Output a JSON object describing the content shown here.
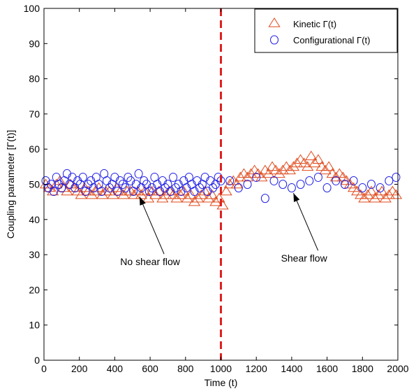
{
  "chart_data": {
    "type": "scatter",
    "title": "",
    "xlabel": "Time (t)",
    "ylabel": "Coupling parameter [Γ(t)]",
    "xlim": [
      0,
      2000
    ],
    "ylim": [
      0,
      100
    ],
    "xticks": [
      0,
      200,
      400,
      600,
      800,
      1000,
      1200,
      1400,
      1600,
      1800,
      2000
    ],
    "yticks": [
      0,
      10,
      20,
      30,
      40,
      50,
      60,
      70,
      80,
      90,
      100
    ],
    "grid": false,
    "legend_position": "top-right",
    "series": [
      {
        "name": "Kinetic  Γ(t)",
        "marker": "triangle",
        "color": "#e04a1c",
        "x": [
          10,
          30,
          50,
          70,
          90,
          110,
          130,
          150,
          170,
          190,
          210,
          230,
          250,
          270,
          290,
          310,
          330,
          350,
          370,
          390,
          410,
          430,
          450,
          470,
          490,
          510,
          530,
          550,
          570,
          590,
          610,
          630,
          650,
          670,
          690,
          710,
          730,
          750,
          770,
          790,
          810,
          830,
          850,
          870,
          890,
          910,
          930,
          950,
          970,
          990,
          1010,
          1030,
          1050,
          1070,
          1090,
          1110,
          1130,
          1150,
          1170,
          1190,
          1210,
          1230,
          1250,
          1270,
          1290,
          1310,
          1330,
          1350,
          1370,
          1390,
          1410,
          1430,
          1450,
          1470,
          1490,
          1510,
          1530,
          1550,
          1570,
          1590,
          1610,
          1630,
          1650,
          1670,
          1690,
          1710,
          1730,
          1750,
          1770,
          1790,
          1810,
          1830,
          1850,
          1870,
          1890,
          1910,
          1930,
          1950,
          1970,
          1990
        ],
        "y": [
          50,
          49,
          48,
          50,
          51,
          49,
          48,
          50,
          49,
          48,
          47,
          49,
          48,
          47,
          48,
          49,
          47,
          48,
          48,
          47,
          49,
          48,
          47,
          48,
          48,
          47,
          48,
          47,
          48,
          46,
          48,
          47,
          48,
          46,
          47,
          48,
          47,
          46,
          47,
          48,
          46,
          47,
          45,
          46,
          47,
          48,
          46,
          47,
          45,
          46,
          44,
          48,
          50,
          51,
          50,
          52,
          53,
          52,
          53,
          54,
          53,
          52,
          54,
          53,
          55,
          54,
          53,
          54,
          55,
          54,
          55,
          56,
          57,
          56,
          55,
          58,
          56,
          57,
          55,
          54,
          55,
          53,
          52,
          53,
          52,
          51,
          50,
          49,
          48,
          47,
          46,
          47,
          48,
          46,
          47,
          48,
          46,
          47,
          48,
          47
        ]
      },
      {
        "name": "Configurational Γ(t)",
        "marker": "circle",
        "color": "#1f1fe6",
        "x": [
          10,
          25,
          40,
          55,
          70,
          85,
          100,
          115,
          130,
          145,
          160,
          175,
          190,
          205,
          220,
          235,
          250,
          265,
          280,
          295,
          310,
          325,
          340,
          355,
          370,
          385,
          400,
          415,
          430,
          445,
          460,
          475,
          490,
          505,
          520,
          535,
          550,
          565,
          580,
          595,
          610,
          625,
          640,
          655,
          670,
          685,
          700,
          715,
          730,
          745,
          760,
          775,
          790,
          805,
          820,
          835,
          850,
          865,
          880,
          895,
          910,
          925,
          940,
          955,
          970,
          985,
          1000,
          1050,
          1100,
          1150,
          1200,
          1250,
          1300,
          1350,
          1400,
          1450,
          1500,
          1550,
          1600,
          1650,
          1700,
          1750,
          1800,
          1850,
          1900,
          1950,
          1990
        ],
        "y": [
          51,
          49,
          50,
          48,
          52,
          50,
          49,
          51,
          53,
          50,
          52,
          49,
          51,
          50,
          52,
          48,
          50,
          51,
          49,
          52,
          50,
          48,
          53,
          51,
          49,
          50,
          52,
          48,
          51,
          50,
          49,
          52,
          51,
          48,
          50,
          53,
          49,
          51,
          50,
          48,
          49,
          52,
          50,
          48,
          51,
          49,
          50,
          48,
          52,
          49,
          50,
          48,
          51,
          49,
          52,
          50,
          48,
          51,
          49,
          50,
          52,
          48,
          51,
          49,
          50,
          52,
          51,
          51,
          49,
          50,
          52,
          46,
          51,
          50,
          49,
          50,
          51,
          52,
          49,
          51,
          50,
          51,
          49,
          50,
          49,
          51,
          52
        ]
      }
    ],
    "annotations": [
      {
        "text": "No shear flow",
        "x": 600,
        "y": 27,
        "arrow_to_x": 540,
        "arrow_to_y": 46.5
      },
      {
        "text": "Shear flow",
        "x": 1470,
        "y": 28,
        "arrow_to_x": 1410,
        "arrow_to_y": 47.5
      }
    ],
    "vline": {
      "x": 1000,
      "color": "#e02020",
      "style": "dashed"
    }
  }
}
